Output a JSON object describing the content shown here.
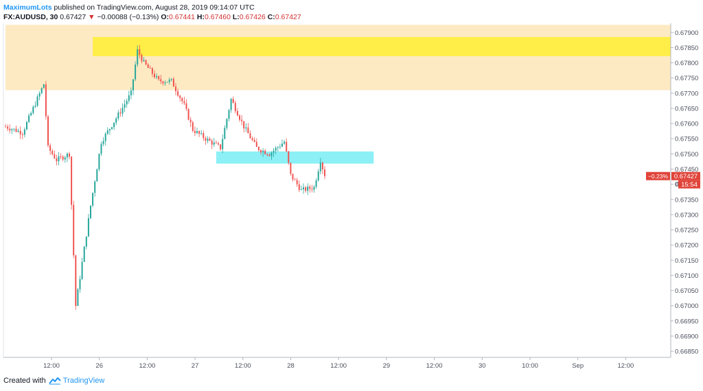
{
  "header": {
    "author": "MaximumLots",
    "published_text": "published on TradingView.com, August 28, 2019 09:14:07 UTC",
    "symbol": "FX:AUDUSD, 30",
    "last": "0.67427",
    "change_arrow": "▼",
    "change": "−0.00088 (−0.13%)",
    "o_label": "O:",
    "o_value": "0.67441",
    "h_label": "H:",
    "h_value": "0.67460",
    "l_label": "L:",
    "l_value": "0.67426",
    "c_label": "C:",
    "c_value": "0.67427"
  },
  "footer": {
    "created_with": "Created with",
    "brand": "TradingView"
  },
  "chart_data": {
    "type": "candlestick",
    "symbol": "FX:AUDUSD",
    "interval": "30",
    "ylim": [
      0.6683,
      0.6793
    ],
    "price_ticks": [
      "0.67900",
      "0.67850",
      "0.67800",
      "0.67750",
      "0.67700",
      "0.67650",
      "0.67600",
      "0.67550",
      "0.67500",
      "0.67450",
      "0.67400",
      "0.67350",
      "0.67300",
      "0.67250",
      "0.67200",
      "0.67150",
      "0.67100",
      "0.67050",
      "0.67000",
      "0.66950",
      "0.66900",
      "0.66850"
    ],
    "time_ticks": [
      "12:00",
      "26",
      "12:00",
      "27",
      "12:00",
      "28",
      "12:00",
      "29",
      "12:00",
      "30",
      "10:00",
      "Sep",
      "12:00"
    ],
    "last_price_label": "0.67427",
    "last_change_label": "−0.23%",
    "countdown_label": "15:54",
    "price_marker_label": "0",
    "colors": {
      "up": "#26a69a",
      "down": "#ef5350",
      "zone_light": "#fde9c0",
      "zone_yellow": "#ffee3a",
      "zone_cyan": "#80eef5",
      "last_price": "#e0443a"
    },
    "zones": [
      {
        "name": "supply-zone",
        "price_top": 0.67925,
        "price_bottom": 0.6771,
        "start_bar": 0,
        "end_bar": "right-edge"
      },
      {
        "name": "yellow-zone",
        "price_top": 0.67885,
        "price_bottom": 0.67822,
        "start_bar": 41,
        "end_bar": "right-edge"
      },
      {
        "name": "cyan-zone",
        "price_top": 0.67508,
        "price_bottom": 0.67468,
        "start_bar": 99,
        "end_bar": 173
      }
    ],
    "guide_path": [
      {
        "bar": 0,
        "price": 0.6759
      },
      {
        "bar": 8,
        "price": 0.6757
      },
      {
        "bar": 18,
        "price": 0.6773
      },
      {
        "bar": 20,
        "price": 0.6752
      },
      {
        "bar": 24,
        "price": 0.6748
      },
      {
        "bar": 30,
        "price": 0.675
      },
      {
        "bar": 33,
        "price": 0.67
      },
      {
        "bar": 40,
        "price": 0.6733
      },
      {
        "bar": 45,
        "price": 0.6754
      },
      {
        "bar": 54,
        "price": 0.6764
      },
      {
        "bar": 59,
        "price": 0.677
      },
      {
        "bar": 62,
        "price": 0.6784
      },
      {
        "bar": 65,
        "price": 0.678
      },
      {
        "bar": 72,
        "price": 0.6774
      },
      {
        "bar": 78,
        "price": 0.6774
      },
      {
        "bar": 84,
        "price": 0.6766
      },
      {
        "bar": 88,
        "price": 0.6758
      },
      {
        "bar": 94,
        "price": 0.6755
      },
      {
        "bar": 101,
        "price": 0.6752
      },
      {
        "bar": 106,
        "price": 0.6768
      },
      {
        "bar": 112,
        "price": 0.6759
      },
      {
        "bar": 118,
        "price": 0.6752
      },
      {
        "bar": 124,
        "price": 0.675
      },
      {
        "bar": 131,
        "price": 0.6754
      },
      {
        "bar": 134,
        "price": 0.6743
      },
      {
        "bar": 139,
        "price": 0.6738
      },
      {
        "bar": 145,
        "price": 0.6739
      },
      {
        "bar": 148,
        "price": 0.6748
      },
      {
        "bar": 150,
        "price": 0.67427
      }
    ]
  }
}
